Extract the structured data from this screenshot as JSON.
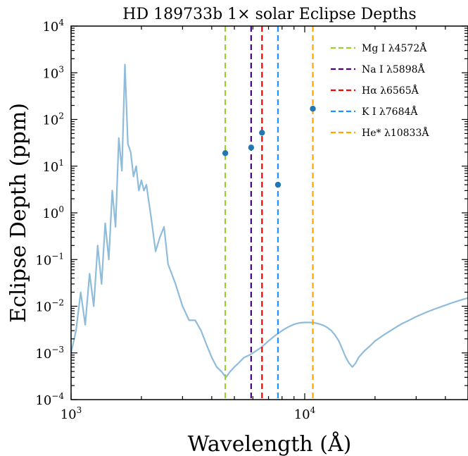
{
  "chart_data": {
    "type": "line",
    "title": "HD 189733b 1× solar Eclipse Depths",
    "xlabel": "Wavelength (Å)",
    "ylabel": "Eclipse Depth (ppm)",
    "xscale": "log",
    "yscale": "log",
    "xlim": [
      1000,
      50000
    ],
    "ylim": [
      0.0001,
      10000
    ],
    "grid": false,
    "legend_position": "top-right",
    "x_tick_labels": [
      {
        "value": 1000,
        "base": "10",
        "exp": "3"
      },
      {
        "value": 10000,
        "base": "10",
        "exp": "4"
      }
    ],
    "y_tick_labels": [
      {
        "value": 0.0001,
        "base": "10",
        "exp": "−4"
      },
      {
        "value": 0.001,
        "base": "10",
        "exp": "−3"
      },
      {
        "value": 0.01,
        "base": "10",
        "exp": "−2"
      },
      {
        "value": 0.1,
        "base": "10",
        "exp": "−1"
      },
      {
        "value": 1,
        "base": "10",
        "exp": "0"
      },
      {
        "value": 10,
        "base": "10",
        "exp": "1"
      },
      {
        "value": 100,
        "base": "10",
        "exp": "2"
      },
      {
        "value": 1000,
        "base": "10",
        "exp": "3"
      },
      {
        "value": 10000,
        "base": "10",
        "exp": "4"
      }
    ],
    "spectrum": {
      "color": "#8fbcdb",
      "x": [
        1000,
        1050,
        1100,
        1150,
        1200,
        1250,
        1300,
        1350,
        1400,
        1450,
        1500,
        1550,
        1600,
        1650,
        1700,
        1750,
        1800,
        1850,
        1900,
        1950,
        2000,
        2050,
        2100,
        2200,
        2300,
        2400,
        2500,
        2600,
        2800,
        3000,
        3200,
        3400,
        3600,
        3800,
        4000,
        4200,
        4400,
        4600,
        4800,
        5000,
        5200,
        5500,
        5800,
        6000,
        6500,
        7000,
        7500,
        8000,
        8500,
        9000,
        9500,
        10000,
        10500,
        11000,
        11500,
        12000,
        12500,
        13000,
        13500,
        14000,
        14500,
        15000,
        15500,
        16000,
        16500,
        17000,
        18000,
        19000,
        20000,
        22000,
        24000,
        26000,
        28000,
        30000,
        32000,
        34000,
        36000,
        38000,
        40000,
        42000,
        44000,
        46000,
        48000,
        50000
      ],
      "y": [
        0.001,
        0.003,
        0.02,
        0.004,
        0.05,
        0.01,
        0.2,
        0.03,
        0.6,
        0.1,
        3,
        0.5,
        40,
        8,
        1500,
        30,
        20,
        6,
        10,
        3,
        5,
        3,
        4,
        0.8,
        0.15,
        0.3,
        0.5,
        0.08,
        0.03,
        0.01,
        0.005,
        0.005,
        0.003,
        0.0015,
        0.0008,
        0.0005,
        0.0004,
        0.0003,
        0.0004,
        0.0005,
        0.0006,
        0.0008,
        0.0009,
        0.001,
        0.0013,
        0.0018,
        0.0024,
        0.003,
        0.0036,
        0.0041,
        0.0044,
        0.0045,
        0.0045,
        0.0044,
        0.0042,
        0.0039,
        0.0035,
        0.003,
        0.0024,
        0.0018,
        0.0012,
        0.0008,
        0.0006,
        0.0005,
        0.0006,
        0.0008,
        0.0011,
        0.0014,
        0.0018,
        0.0025,
        0.0033,
        0.0042,
        0.005,
        0.006,
        0.0069,
        0.0078,
        0.0087,
        0.0096,
        0.0105,
        0.0115,
        0.0124,
        0.0133,
        0.0142,
        0.015
      ]
    },
    "lines": [
      {
        "name": "Mg I λ4572Å",
        "wavelength": 4572,
        "color": "#9acd32",
        "point": 19
      },
      {
        "name": "Na I λ5898Å",
        "wavelength": 5898,
        "color": "#4b0082",
        "point": 25
      },
      {
        "name": "Hα λ6565Å",
        "wavelength": 6565,
        "color": "#ff0000",
        "point": 52
      },
      {
        "name": "K I λ7684Å",
        "wavelength": 7684,
        "color": "#1e90ff",
        "point": 4
      },
      {
        "name": "He* λ10833Å",
        "wavelength": 10833,
        "color": "#ffa500",
        "point": 170
      }
    ],
    "point_color": "#1f77b4"
  }
}
